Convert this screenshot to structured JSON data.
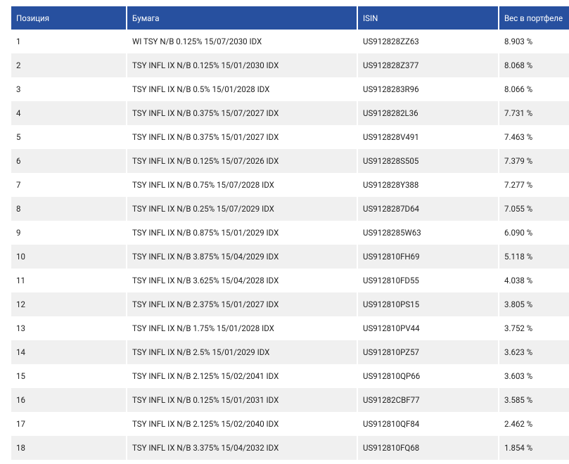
{
  "table": {
    "header": [
      "Позиция",
      "Бумага",
      "ISIN",
      "Вес в портфеле"
    ],
    "rows": [
      [
        "1",
        "WI TSY N/B 0.125% 15/07/2030 IDX",
        "US912828ZZ63",
        "8.903 %"
      ],
      [
        "2",
        "TSY INFL IX N/B 0.125% 15/01/2030 IDX",
        "US912828Z377",
        "8.068 %"
      ],
      [
        "3",
        "TSY INFL IX N/B 0.5% 15/01/2028 IDX",
        "US9128283R96",
        "8.066 %"
      ],
      [
        "4",
        "TSY INFL IX N/B 0.375% 15/07/2027 IDX",
        "US9128282L36",
        "7.731 %"
      ],
      [
        "5",
        "TSY INFL IX N/B 0.375% 15/01/2027 IDX",
        "US912828V491",
        "7.463 %"
      ],
      [
        "6",
        "TSY INFL IX N/B 0.125% 15/07/2026 IDX",
        "US912828S505",
        "7.379 %"
      ],
      [
        "7",
        "TSY INFL IX N/B 0.75% 15/07/2028 IDX",
        "US912828Y388",
        "7.277 %"
      ],
      [
        "8",
        "TSY INFL IX N/B 0.25% 15/07/2029 IDX",
        "US9128287D64",
        "7.055 %"
      ],
      [
        "9",
        "TSY INFL IX N/B 0.875% 15/01/2029 IDX",
        "US9128285W63",
        "6.090 %"
      ],
      [
        "10",
        "TSY INFL IX N/B 3.875% 15/04/2029 IDX",
        "US912810FH69",
        "5.118 %"
      ],
      [
        "11",
        "TSY INFL IX N/B 3.625% 15/04/2028 IDX",
        "US912810FD55",
        "4.038 %"
      ],
      [
        "12",
        "TSY INFL IX N/B 2.375% 15/01/2027 IDX",
        "US912810PS15",
        "3.805 %"
      ],
      [
        "13",
        "TSY INFL IX N/B 1.75% 15/01/2028 IDX",
        "US912810PV44",
        "3.752 %"
      ],
      [
        "14",
        "TSY INFL IX N/B 2.5% 15/01/2029 IDX",
        "US912810PZ57",
        "3.623 %"
      ],
      [
        "15",
        "TSY INFL IX N/B 2.125% 15/02/2041 IDX",
        "US912810QP66",
        "3.603 %"
      ],
      [
        "16",
        "TSY INFL IX N/B 0.125% 15/01/2031 IDX",
        "US91282CBF77",
        "3.585 %"
      ],
      [
        "17",
        "TSY INFL IX N/B 2.125% 15/02/2040 IDX",
        "US912810QF84",
        "2.462 %"
      ],
      [
        "18",
        "TSY INFL IX N/B 3.375% 15/04/2032 IDX",
        "US912810FQ68",
        "1.854 %"
      ]
    ]
  }
}
